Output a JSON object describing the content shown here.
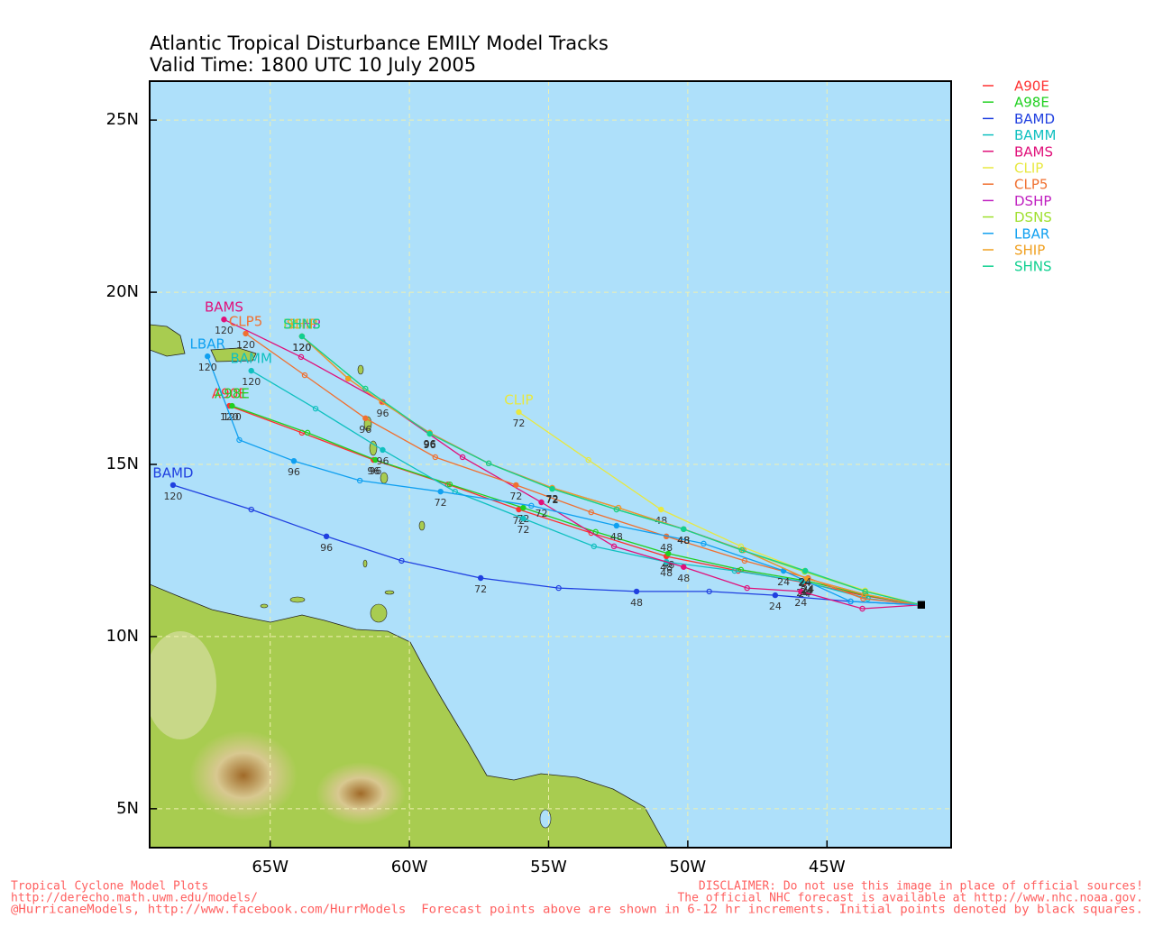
{
  "chart_data": {
    "type": "track-map",
    "title": "Atlantic Tropical Disturbance EMILY Model Tracks",
    "subtitle": "Valid Time: 1800 UTC 10 July 2005",
    "xlim": [
      -69.33,
      -40.54
    ],
    "ylim": [
      3.87,
      26.13
    ],
    "xticks": [
      {
        "value": -65,
        "label": "65W"
      },
      {
        "value": -60,
        "label": "60W"
      },
      {
        "value": -55,
        "label": "55W"
      },
      {
        "value": -50,
        "label": "50W"
      },
      {
        "value": -45,
        "label": "45W"
      }
    ],
    "yticks": [
      {
        "value": 5,
        "label": "5N"
      },
      {
        "value": 10,
        "label": "10N"
      },
      {
        "value": 15,
        "label": "15N"
      },
      {
        "value": 20,
        "label": "20N"
      },
      {
        "value": 25,
        "label": "25N"
      }
    ],
    "grid": true,
    "series": [
      {
        "name": "A90E",
        "color": "#ff3030",
        "x": [
          -41.61,
          -43.63,
          -45.81,
          -48.19,
          -50.77,
          -53.47,
          -56.07,
          -58.62,
          -61.29,
          -63.86,
          -66.47
        ],
        "values": [
          10.92,
          11.18,
          11.57,
          11.91,
          12.33,
          13.01,
          13.69,
          14.42,
          15.13,
          15.92,
          16.7
        ],
        "hour_labels": [
          null,
          null,
          "24",
          null,
          "48",
          null,
          "72",
          null,
          "96",
          null,
          "120"
        ]
      },
      {
        "name": "A98E",
        "color": "#20d020",
        "x": [
          -41.61,
          -43.6,
          -45.75,
          -48.09,
          -50.7,
          -53.31,
          -55.91,
          -58.55,
          -61.22,
          -63.66,
          -66.37
        ],
        "values": [
          10.92,
          11.2,
          11.62,
          11.94,
          12.41,
          13.04,
          13.74,
          14.42,
          15.13,
          15.92,
          16.7
        ],
        "hour_labels": [
          null,
          null,
          "24",
          null,
          "48",
          null,
          "72",
          null,
          "96",
          null,
          "120"
        ]
      },
      {
        "name": "BAMD",
        "color": "#2040e0",
        "x": [
          -41.61,
          -44.15,
          -46.86,
          -49.23,
          -51.84,
          -54.64,
          -57.44,
          -60.28,
          -62.98,
          -65.68,
          -68.49
        ],
        "values": [
          10.92,
          11.02,
          11.2,
          11.31,
          11.31,
          11.41,
          11.7,
          12.2,
          12.91,
          13.69,
          14.4
        ],
        "hour_labels": [
          null,
          null,
          "24",
          null,
          "48",
          null,
          "72",
          null,
          "96",
          null,
          "120"
        ]
      },
      {
        "name": "BAMM",
        "color": "#10c0c0",
        "x": [
          -41.61,
          -43.53,
          -45.88,
          -48.32,
          -50.77,
          -53.37,
          -55.91,
          -58.36,
          -60.96,
          -63.37,
          -65.68
        ],
        "values": [
          10.92,
          11.1,
          11.6,
          11.91,
          12.17,
          12.62,
          13.43,
          14.21,
          15.42,
          16.62,
          17.72
        ],
        "hour_labels": [
          null,
          null,
          "24",
          null,
          "48",
          null,
          "72",
          null,
          "96",
          null,
          "120"
        ]
      },
      {
        "name": "BAMS",
        "color": "#e0107a",
        "x": [
          -41.61,
          -43.73,
          -45.94,
          -47.87,
          -50.15,
          -52.65,
          -55.26,
          -58.09,
          -60.96,
          -63.89,
          -66.66
        ],
        "values": [
          10.92,
          10.81,
          11.31,
          11.41,
          12.02,
          12.62,
          13.9,
          15.21,
          16.81,
          18.12,
          19.21
        ],
        "hour_labels": [
          null,
          null,
          "24",
          null,
          "48",
          null,
          "72",
          null,
          "96",
          null,
          "120"
        ]
      },
      {
        "name": "CLIP",
        "color": "#e8e840",
        "x": [
          -41.61,
          -43.63,
          -45.81,
          -48.09,
          -50.96,
          -53.57,
          -56.07
        ],
        "values": [
          10.92,
          11.34,
          11.91,
          12.62,
          13.69,
          15.13,
          16.52
        ],
        "hour_labels": [
          null,
          null,
          "24",
          null,
          "48",
          null,
          "72"
        ]
      },
      {
        "name": "CLP5",
        "color": "#f07030",
        "x": [
          -41.61,
          -43.7,
          -45.68,
          -47.96,
          -50.77,
          -53.47,
          -56.17,
          -59.07,
          -61.58,
          -63.76,
          -65.88
        ],
        "values": [
          10.92,
          11.1,
          11.7,
          12.2,
          12.91,
          13.61,
          14.4,
          15.21,
          16.34,
          17.59,
          18.8
        ],
        "hour_labels": [
          null,
          null,
          "24",
          null,
          "48",
          null,
          "72",
          null,
          "96",
          null,
          "120"
        ]
      },
      {
        "name": "DSHP",
        "color": "#c020c0",
        "x": [
          -41.61,
          -43.66,
          -45.72,
          -48.0,
          -50.15,
          -52.49,
          -54.87,
          -57.15,
          -59.27,
          -60.99,
          -62.2,
          -63.86
        ],
        "values": [
          10.92,
          11.23,
          11.68,
          12.51,
          13.12,
          13.74,
          14.32,
          15.03,
          15.92,
          16.81,
          17.49,
          18.72
        ],
        "hour_labels": [
          null,
          null,
          "24",
          null,
          "48",
          null,
          "72",
          null,
          "96",
          null,
          null,
          "120"
        ]
      },
      {
        "name": "DSNS",
        "color": "#a0e030",
        "x": [
          -41.61,
          -43.63,
          -45.8,
          -48.06,
          -50.15,
          -52.56,
          -54.87,
          -57.15,
          -59.27,
          -61.58,
          -63.86
        ],
        "values": [
          10.92,
          11.31,
          11.88,
          12.51,
          13.12,
          13.69,
          14.29,
          15.03,
          15.89,
          17.2,
          18.72
        ],
        "hour_labels": [
          null,
          null,
          "24",
          null,
          "48",
          null,
          "72",
          null,
          "96",
          null,
          "120"
        ]
      },
      {
        "name": "LBAR",
        "color": "#10a0f0",
        "x": [
          -41.61,
          -44.15,
          -46.56,
          -49.43,
          -52.56,
          -55.62,
          -58.88,
          -61.78,
          -64.15,
          -66.11,
          -67.25
        ],
        "values": [
          10.92,
          11.02,
          11.91,
          12.7,
          13.22,
          13.8,
          14.21,
          14.53,
          15.1,
          15.71,
          18.14
        ],
        "hour_labels": [
          null,
          null,
          "24",
          null,
          "48",
          null,
          "72",
          null,
          "96",
          null,
          "120"
        ]
      },
      {
        "name": "SHIP",
        "color": "#f0a020",
        "x": [
          -41.61,
          -43.66,
          -45.72,
          -48.0,
          -50.15,
          -52.49,
          -54.87,
          -57.15,
          -59.27,
          -60.99,
          -62.2,
          -63.86
        ],
        "values": [
          10.92,
          11.23,
          11.68,
          12.51,
          13.12,
          13.74,
          14.32,
          15.03,
          15.92,
          16.81,
          17.49,
          18.72
        ],
        "hour_labels": [
          null,
          null,
          "24",
          null,
          "48",
          null,
          "72",
          null,
          "96",
          null,
          null,
          "120"
        ]
      },
      {
        "name": "SHNS",
        "color": "#10d090",
        "x": [
          -41.61,
          -43.63,
          -45.78,
          -48.06,
          -50.15,
          -52.56,
          -54.87,
          -57.15,
          -59.27,
          -61.58,
          -63.86
        ],
        "values": [
          10.92,
          11.31,
          11.91,
          12.51,
          13.12,
          13.69,
          14.29,
          15.03,
          15.89,
          17.2,
          18.72
        ],
        "hour_labels": [
          null,
          null,
          "24",
          null,
          "48",
          null,
          "72",
          null,
          "96",
          null,
          "120"
        ]
      }
    ]
  },
  "footer": {
    "left": [
      "Tropical Cyclone Model Plots",
      "http://derecho.math.uwm.edu/models/"
    ],
    "right": [
      "DISCLAIMER: Do not use this image in place of official sources!",
      "The official NHC forecast is available at http://www.nhc.noaa.gov."
    ],
    "bottom": "@HurricaneModels, http://www.facebook.com/HurrModels  Forecast points above are shown in 6-12 hr increments. Initial points denoted by black squares."
  }
}
